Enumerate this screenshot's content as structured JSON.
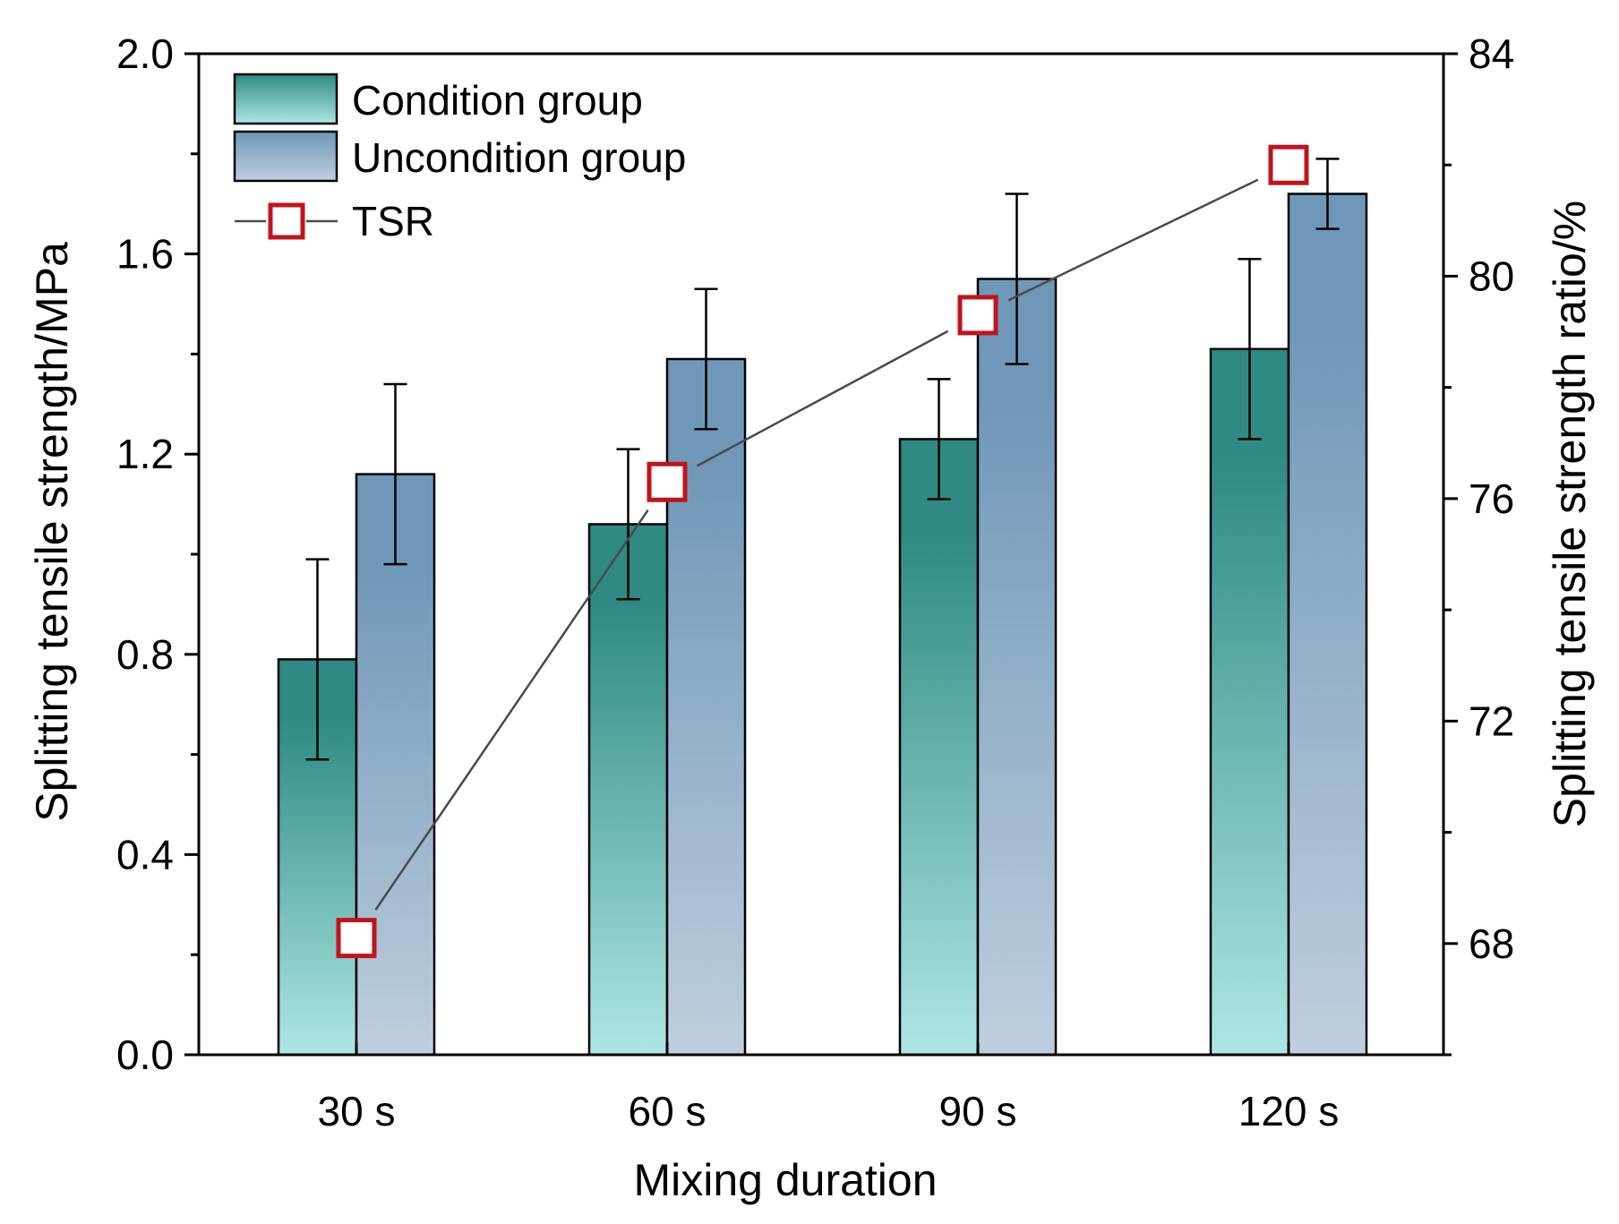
{
  "chart_data": {
    "type": "bar",
    "title": "",
    "xlabel": "Mixing duration",
    "ylabel": "Splitting tensile strength/MPa",
    "y2label": "Splitting tensile strength ratio/%",
    "categories": [
      "30 s",
      "60 s",
      "90 s",
      "120 s"
    ],
    "ylim": [
      0,
      2.0
    ],
    "yticks": [
      0.0,
      0.4,
      0.8,
      1.2,
      1.6,
      2.0
    ],
    "ytick_labels": [
      "0.0",
      "0.4",
      "0.8",
      "1.2",
      "1.6",
      "2.0"
    ],
    "y2lim": [
      66,
      84
    ],
    "y2ticks": [
      68,
      72,
      76,
      80,
      84
    ],
    "y2tick_labels": [
      "68",
      "72",
      "76",
      "80",
      "84"
    ],
    "legend_position": "top-left",
    "grid": false,
    "series": [
      {
        "name": "Condition group",
        "type": "bar",
        "values": [
          0.79,
          1.06,
          1.23,
          1.41
        ],
        "errors": [
          0.2,
          0.15,
          0.12,
          0.18
        ],
        "color_top": "#2e8a82",
        "color_bottom": "#aee6e4"
      },
      {
        "name": "Uncondition group",
        "type": "bar",
        "values": [
          1.16,
          1.39,
          1.55,
          1.72
        ],
        "errors": [
          0.18,
          0.14,
          0.17,
          0.07
        ],
        "color_top": "#6f97b8",
        "color_bottom": "#bfcfdd"
      },
      {
        "name": "TSR",
        "type": "line",
        "axis": "right",
        "values": [
          68.1,
          76.3,
          79.3,
          82.0
        ],
        "line_color": "#4a4a4a",
        "marker_color": "#c0141c"
      }
    ]
  }
}
